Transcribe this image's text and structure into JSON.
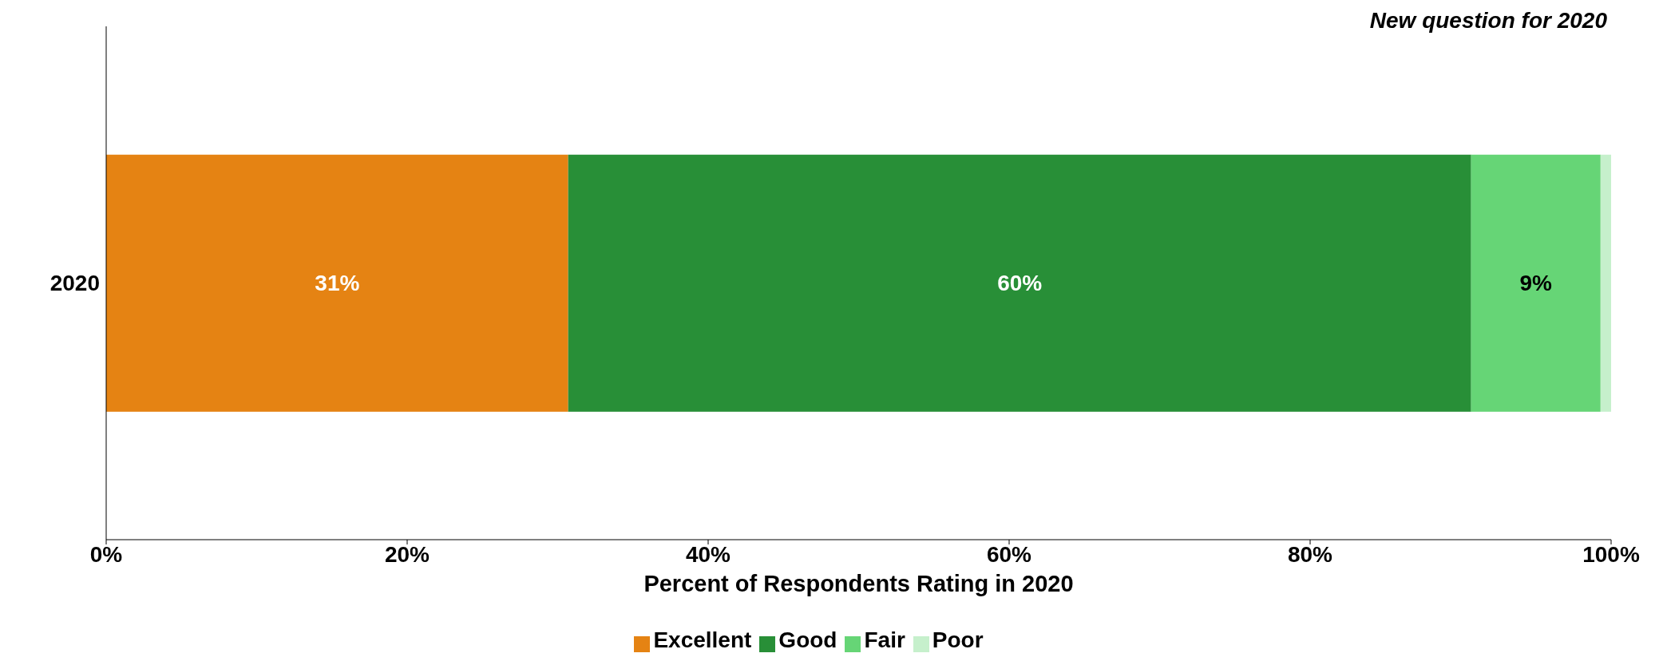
{
  "chart_data": {
    "type": "bar",
    "orientation": "horizontal",
    "stacked": true,
    "xlabel": "Percent of Respondents Rating in 2020",
    "annotations": [
      "New question for 2020"
    ],
    "categories": [
      "2020"
    ],
    "series": [
      {
        "name": "Excellent",
        "color": "#e58313",
        "values": [
          30.7
        ],
        "value_labels": [
          "31%"
        ]
      },
      {
        "name": "Good",
        "color": "#288f37",
        "values": [
          60
        ],
        "value_labels": [
          "60%"
        ]
      },
      {
        "name": "Fair",
        "color": "#66d576",
        "values": [
          8.6
        ],
        "value_labels": [
          "9%"
        ]
      },
      {
        "name": "Poor",
        "color": "#c6f0cc",
        "values": [
          0.7
        ],
        "value_labels": [
          null
        ]
      }
    ],
    "xlim": [
      0,
      100
    ],
    "xticks": [
      {
        "value": 0,
        "label": "0%"
      },
      {
        "value": 20,
        "label": "20%"
      },
      {
        "value": 40,
        "label": "40%"
      },
      {
        "value": 60,
        "label": "60%"
      },
      {
        "value": 80,
        "label": "80%"
      },
      {
        "value": 100,
        "label": "100%"
      }
    ],
    "legend": "bottom",
    "grid": false
  }
}
